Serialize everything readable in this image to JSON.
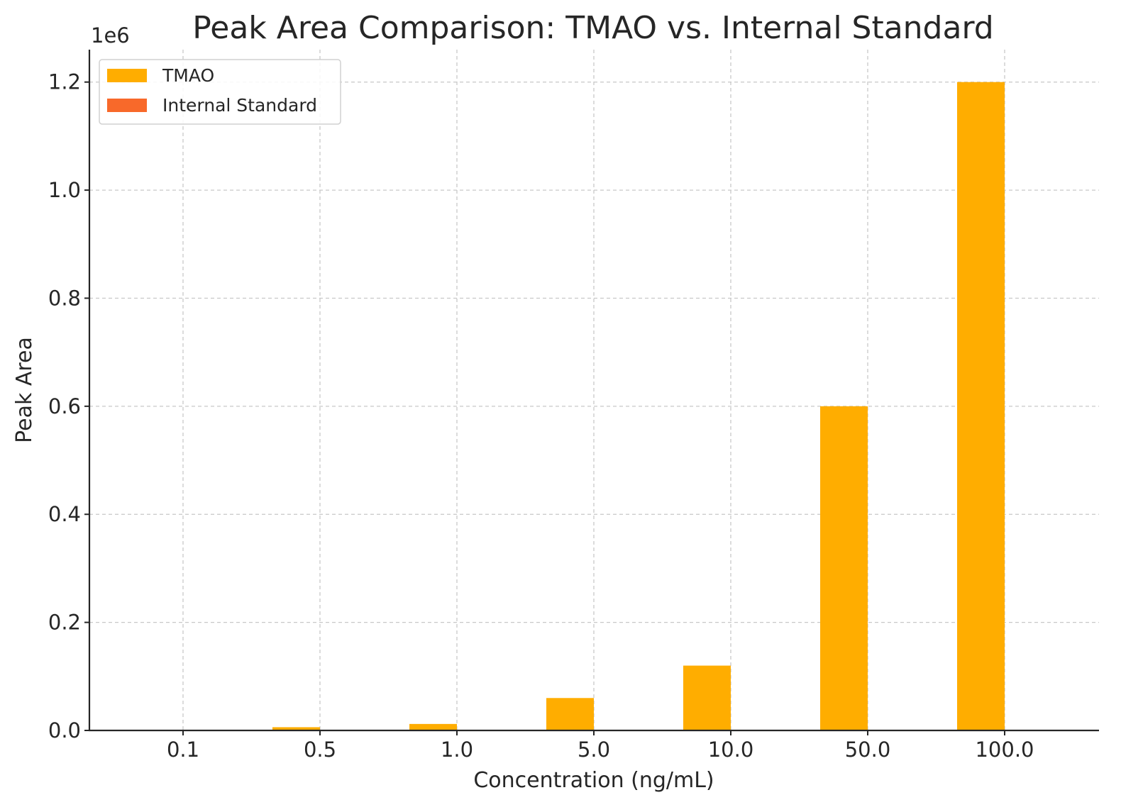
{
  "chart_data": {
    "type": "bar",
    "title": "Peak Area Comparison: TMAO vs. Internal Standard",
    "xlabel": "Concentration (ng/mL)",
    "ylabel": "Peak Area",
    "y_offset_label": "1e6",
    "categories": [
      "0.1",
      "0.5",
      "1.0",
      "5.0",
      "10.0",
      "50.0",
      "100.0"
    ],
    "series": [
      {
        "name": "TMAO",
        "color": "#ffad00",
        "values": [
          1200,
          6000,
          12000,
          60000,
          120000,
          600000,
          1200000
        ]
      },
      {
        "name": "Internal Standard",
        "color": "#f8692a",
        "values": [
          0,
          0,
          0,
          0,
          0,
          0,
          0
        ]
      }
    ],
    "ylim": [
      0,
      1260000
    ],
    "yticks": [
      0,
      200000,
      400000,
      600000,
      800000,
      1000000,
      1200000
    ],
    "ytick_labels": [
      "0.0",
      "0.2",
      "0.4",
      "0.6",
      "0.8",
      "1.0",
      "1.2"
    ],
    "grid": true,
    "legend_position": "top-left"
  }
}
